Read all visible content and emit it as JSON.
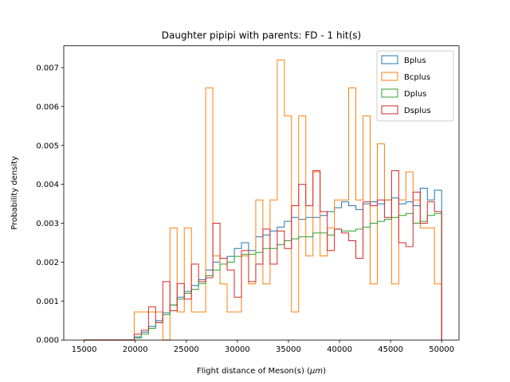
{
  "chart_data": {
    "type": "histogram",
    "title": "Daughter pipipi with parents: FD - 1 hit(s)",
    "xlabel": "Flight distance of Meson(s) (",
    "xlabel_unit": "μm",
    "xlabel_suffix": ")",
    "ylabel": "Probability density",
    "xlim": [
      13000,
      51700
    ],
    "ylim": [
      0,
      0.00756
    ],
    "xticks": [
      15000,
      20000,
      25000,
      30000,
      35000,
      40000,
      45000,
      50000
    ],
    "yticks": [
      0.0,
      0.001,
      0.002,
      0.003,
      0.004,
      0.005,
      0.006,
      0.007
    ],
    "ytick_labels": [
      "0.000",
      "0.001",
      "0.002",
      "0.003",
      "0.004",
      "0.005",
      "0.006",
      "0.007"
    ],
    "bins": {
      "start": 15000,
      "end": 50000,
      "count": 50
    },
    "legend_position": "top-right",
    "series": [
      {
        "name": "Bplus",
        "color": "#1f77b4",
        "values": [
          0,
          0,
          0,
          0,
          0,
          0,
          0,
          8e-05,
          0.0002,
          0.00035,
          0.0005,
          0.0007,
          0.0009,
          0.0011,
          0.00125,
          0.0014,
          0.00155,
          0.0018,
          0.002,
          0.0021,
          0.00215,
          0.00235,
          0.0025,
          0.0023,
          0.00265,
          0.0027,
          0.0028,
          0.0029,
          0.00305,
          0.00315,
          0.0031,
          0.00315,
          0.00315,
          0.0032,
          0.0033,
          0.0034,
          0.00355,
          0.00345,
          0.00335,
          0.0035,
          0.00355,
          0.0035,
          0.0036,
          0.00365,
          0.0035,
          0.00355,
          0.00345,
          0.0039,
          0.0036,
          0.00385
        ]
      },
      {
        "name": "Bcplus",
        "color": "#ff7f0e",
        "values": [
          0,
          0,
          0,
          0,
          0,
          0,
          0,
          0.00072,
          0.00072,
          0.00072,
          0.00072,
          0,
          0.00288,
          0.00072,
          0.00288,
          0.00072,
          0.00072,
          0.00648,
          0.00216,
          0.00144,
          0.00072,
          0.00072,
          0.00216,
          0.00144,
          0.0036,
          0.00144,
          0.0036,
          0.0072,
          0.00576,
          0.00072,
          0.00576,
          0.00216,
          0.00432,
          0.00216,
          0.00288,
          0.0036,
          0.0036,
          0.00648,
          0.0036,
          0.00576,
          0.00144,
          0.00504,
          0.0036,
          0.00144,
          0.0036,
          0.00432,
          0.0036,
          0.00288,
          0.00288,
          0.00144
        ]
      },
      {
        "name": "Dplus",
        "color": "#2ca02c",
        "values": [
          0,
          0,
          0,
          0,
          0,
          0,
          0,
          5e-05,
          0.00015,
          0.0003,
          0.00045,
          0.00065,
          0.0009,
          0.00105,
          0.0012,
          0.0013,
          0.00145,
          0.00165,
          0.0018,
          0.00195,
          0.002,
          0.00215,
          0.0022,
          0.0022,
          0.00225,
          0.00235,
          0.00235,
          0.00245,
          0.00255,
          0.0026,
          0.00265,
          0.00265,
          0.00275,
          0.00275,
          0.0027,
          0.00285,
          0.0028,
          0.0028,
          0.00285,
          0.0029,
          0.003,
          0.00305,
          0.0031,
          0.00315,
          0.0032,
          0.00325,
          0.003,
          0.00305,
          0.0032,
          0.00325
        ]
      },
      {
        "name": "Dsplus",
        "color": "#d62728",
        "values": [
          0,
          0,
          0,
          0,
          0,
          0,
          0,
          0.00015,
          0.00025,
          0.00085,
          0.00045,
          0.0015,
          0.00075,
          0.00145,
          0.00105,
          0.00195,
          0.0015,
          0.0016,
          0.003,
          0.0021,
          0.0018,
          0.0011,
          0.0023,
          0.0015,
          0.00195,
          0.00285,
          0.00195,
          0.0028,
          0.00235,
          0.00345,
          0.004,
          0.00345,
          0.00435,
          0.0033,
          0.0023,
          0.00285,
          0.00275,
          0.00255,
          0.0021,
          0.00355,
          0.00345,
          0.0036,
          0.00315,
          0.00435,
          0.0025,
          0.0024,
          0.0038,
          0.003,
          0.00355,
          0.0033
        ]
      }
    ]
  }
}
